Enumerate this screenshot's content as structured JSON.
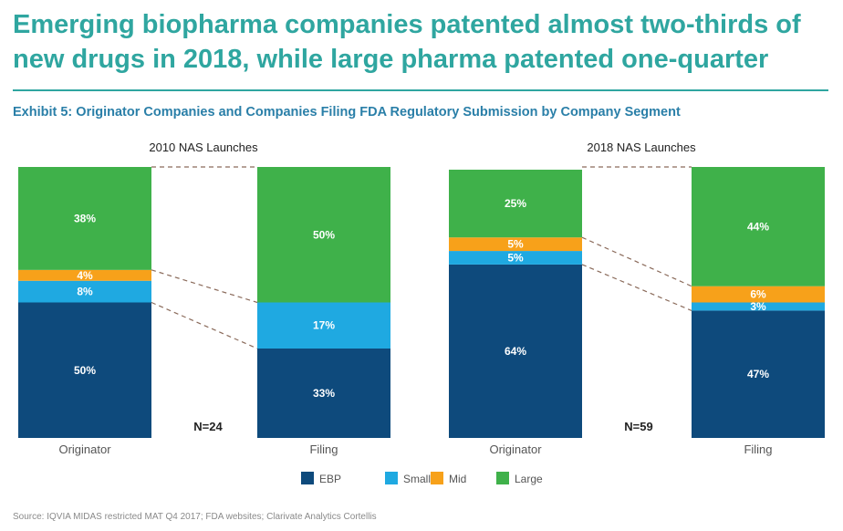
{
  "headline": "Emerging biopharma companies patented almost two-thirds of new drugs in 2018, while large pharma patented one-quarter",
  "exhibit": "Exhibit 5: Originator Companies and Companies Filing FDA Regulatory Submission by Company Segment",
  "source": "Source: IQVIA MIDAS restricted MAT Q4 2017; FDA websites; Clarivate Analytics Cortellis",
  "colors": {
    "title": "#2fa6a0",
    "rule": "#2fa6a0",
    "exhibit": "#2a7fa8",
    "EBP": "#0e4a7c",
    "Small": "#1fa9e1",
    "Mid": "#f7a11a",
    "Large": "#3fb14a"
  },
  "chart_data": {
    "type": "bar",
    "stacked": true,
    "unit": "%",
    "series_order": [
      "EBP",
      "Small",
      "Mid",
      "Large"
    ],
    "legend": [
      "EBP",
      "Small",
      "Mid",
      "Large"
    ],
    "legend_position": "bottom-center",
    "panels": [
      {
        "title": "2010 NAS Launches",
        "n_label": "N=24",
        "bars": [
          {
            "category": "Originator",
            "values": {
              "EBP": 50,
              "Small": 8,
              "Mid": 4,
              "Large": 38
            },
            "labels": {
              "EBP": "50%",
              "Small": "8%",
              "Mid": "4%",
              "Large": "38%"
            }
          },
          {
            "category": "Filing",
            "values": {
              "EBP": 33,
              "Small": 17,
              "Mid": 0,
              "Large": 50
            },
            "labels": {
              "EBP": "33%",
              "Small": "17%",
              "Large": "50%"
            }
          }
        ]
      },
      {
        "title": "2018 NAS Launches",
        "n_label": "N=59",
        "bars": [
          {
            "category": "Originator",
            "values": {
              "EBP": 64,
              "Small": 5,
              "Mid": 5,
              "Large": 25
            },
            "labels": {
              "EBP": "64%",
              "Small": "5%",
              "Mid": "5%",
              "Large": "25%"
            }
          },
          {
            "category": "Filing",
            "values": {
              "EBP": 47,
              "Small": 3,
              "Mid": 6,
              "Large": 44
            },
            "labels": {
              "EBP": "47%",
              "Small": "3%",
              "Mid": "6%",
              "Large": "44%"
            }
          }
        ]
      }
    ]
  }
}
